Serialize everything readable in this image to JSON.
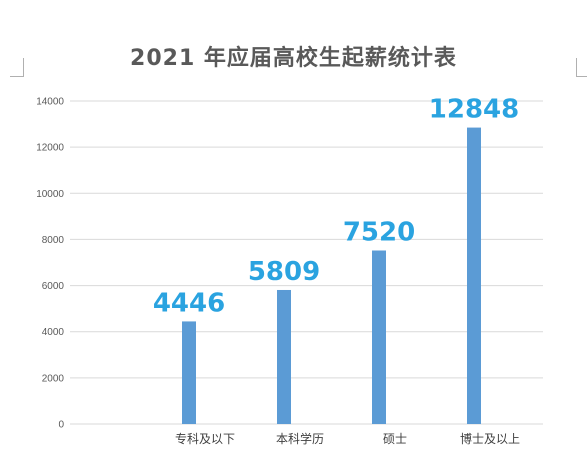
{
  "chart_data": {
    "type": "bar",
    "title": "2021 年应届高校生起薪统计表",
    "categories": [
      "",
      "专科及以下",
      "本科学历",
      "硕士",
      "博士及以上"
    ],
    "values": [
      null,
      4446,
      5809,
      7520,
      12848
    ],
    "data_labels": [
      "",
      "4446",
      "5809",
      "7520",
      "12848"
    ],
    "yticks": [
      "0",
      "2000",
      "4000",
      "6000",
      "8000",
      "10000",
      "12000",
      "14000"
    ],
    "ylim": [
      0,
      14000
    ],
    "xlabel": "",
    "ylabel": "",
    "grid": true,
    "legend": "none",
    "colors": {
      "bar": "#5b9bd5",
      "data_label": "#2aa3e0",
      "grid": "#d9d9d9",
      "title": "#595959"
    }
  }
}
